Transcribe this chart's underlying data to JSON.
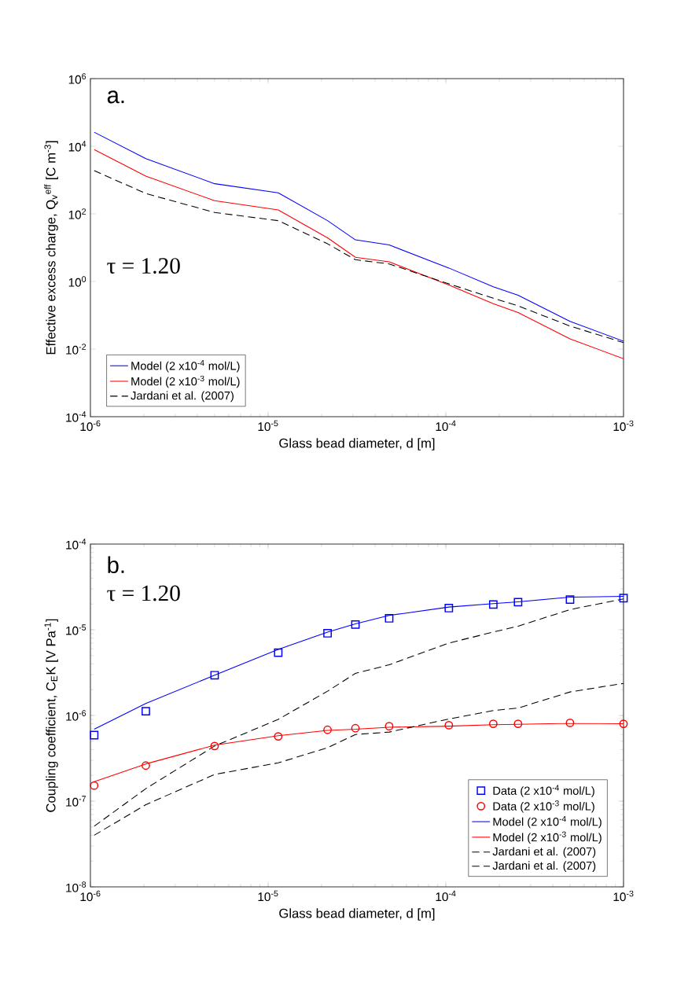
{
  "chart_data": [
    {
      "type": "line",
      "xlabel": "Glass bead diameter, d [m]",
      "ylabel": "Effective excess charge, Q$_{v}$$^{eff}$ [C m$^{-3}$]",
      "log": "xy",
      "legend": "bottom left",
      "grid": false,
      "xlim": [
        1e-06,
        0.001
      ],
      "ylim": [
        0.0001,
        1000000.0
      ],
      "xticks": [
        {
          "value": 1e-06,
          "label": "10$^{-6}$"
        },
        {
          "value": 1e-05,
          "label": "10$^{-5}$"
        },
        {
          "value": 0.0001,
          "label": "10$^{-4}$"
        },
        {
          "value": 0.001,
          "label": "10$^{-3}$"
        }
      ],
      "yticks": [
        {
          "value": 0.0001,
          "label": "10$^{-4}$"
        },
        {
          "value": 0.01,
          "label": "10$^{-2}$"
        },
        {
          "value": 1,
          "label": "10$^{0}$"
        },
        {
          "value": 100,
          "label": "10$^{2}$"
        },
        {
          "value": 10000.0,
          "label": "10$^{4}$"
        },
        {
          "value": 1000000.0,
          "label": "10$^{6}$"
        }
      ],
      "annotations": [
        "a.",
        "τ = 1.20"
      ],
      "x": [
        1.05e-06,
        2.05e-06,
        5e-06,
        1.14e-05,
        2.16e-05,
        3.1e-05,
        4.8e-05,
        0.000104,
        0.000185,
        0.000255,
        0.0005,
        0.001
      ],
      "series": [
        {
          "name": "Model (2 x10$^{-4}$ mol/L)",
          "color": "#0000ff",
          "line_style": "solid",
          "values": [
            26000,
            4300,
            780,
            420,
            63,
            17,
            12,
            2.5,
            0.7,
            0.39,
            0.066,
            0.017
          ]
        },
        {
          "name": "Model (2 x10$^{-3}$ mol/L)",
          "color": "#ff0000",
          "line_style": "solid",
          "values": [
            8000,
            1300,
            245,
            130,
            19.5,
            5.2,
            3.8,
            0.79,
            0.22,
            0.12,
            0.02,
            0.0052
          ]
        },
        {
          "name": "Jardani et al. (2007)",
          "color": "#000000",
          "line_style": "dashed",
          "values": [
            1900,
            400,
            110,
            63,
            13,
            4.4,
            3.3,
            0.85,
            0.32,
            0.19,
            0.048,
            0.0155
          ]
        }
      ]
    },
    {
      "type": "line",
      "xlabel": "Glass bead diameter, d [m]",
      "ylabel": "Coupling coefficient, C$_{E}$K [V Pa$^{-1}$]",
      "log": "xy",
      "legend": "bottom right",
      "grid": false,
      "xlim": [
        1e-06,
        0.001
      ],
      "ylim": [
        1e-08,
        0.0001
      ],
      "xticks": [
        {
          "value": 1e-06,
          "label": "10$^{-6}$"
        },
        {
          "value": 1e-05,
          "label": "10$^{-5}$"
        },
        {
          "value": 0.0001,
          "label": "10$^{-4}$"
        },
        {
          "value": 0.001,
          "label": "10$^{-3}$"
        }
      ],
      "yticks": [
        {
          "value": 1e-08,
          "label": "10$^{-8}$"
        },
        {
          "value": 1e-07,
          "label": "10$^{-7}$"
        },
        {
          "value": 1e-06,
          "label": "10$^{-6}$"
        },
        {
          "value": 1e-05,
          "label": "10$^{-5}$"
        },
        {
          "value": 0.0001,
          "label": "10$^{-4}$"
        }
      ],
      "annotations": [
        "b.",
        "τ = 1.20"
      ],
      "x": [
        1.05e-06,
        2.05e-06,
        5e-06,
        1.14e-05,
        2.16e-05,
        3.1e-05,
        4.8e-05,
        0.000104,
        0.000185,
        0.000255,
        0.0005,
        0.001
      ],
      "series": [
        {
          "name": "Data (2 x10$^{-4}$ mol/L)",
          "type": "scatter",
          "marker": "square",
          "color": "#0000ff",
          "values": [
            5.9e-07,
            1.12e-06,
            2.95e-06,
            5.4e-06,
            9.1e-06,
            1.15e-05,
            1.36e-05,
            1.79e-05,
            1.97e-05,
            2.1e-05,
            2.25e-05,
            2.34e-05
          ]
        },
        {
          "name": "Data (2 x10$^{-3}$ mol/L)",
          "type": "scatter",
          "marker": "circle",
          "color": "#ff0000",
          "values": [
            1.52e-07,
            2.6e-07,
            4.4e-07,
            5.7e-07,
            6.8e-07,
            7.1e-07,
            7.5e-07,
            7.7e-07,
            8e-07,
            8e-07,
            8.2e-07,
            8e-07
          ]
        },
        {
          "name": "Model (2 x10$^{-4}$ mol/L)",
          "type": "line",
          "line_style": "solid",
          "color": "#0000ff",
          "values": [
            6.9e-07,
            1.38e-06,
            2.95e-06,
            5.9e-06,
            9.4e-06,
            1.17e-05,
            1.47e-05,
            1.84e-05,
            2.02e-05,
            2.12e-05,
            2.4e-05,
            2.45e-05
          ]
        },
        {
          "name": "Model (2 x10$^{-3}$ mol/L)",
          "type": "line",
          "line_style": "solid",
          "color": "#ff0000",
          "values": [
            1.69e-07,
            2.72e-07,
            4.5e-07,
            5.8e-07,
            6.7e-07,
            6.9e-07,
            7.3e-07,
            7.5e-07,
            7.8e-07,
            7.9e-07,
            8.1e-07,
            8e-07
          ]
        },
        {
          "name": "Jardani et al. (2007)",
          "type": "line",
          "line_style": "dashed",
          "color": "#000000",
          "values": [
            5.1e-08,
            1.4e-07,
            4.4e-07,
            9e-07,
            1.92e-06,
            3.1e-06,
            3.9e-06,
            7e-06,
            9.4e-06,
            1.1e-05,
            1.72e-05,
            2.29e-05
          ]
        },
        {
          "name": "Jardani et al. (2007)",
          "type": "line",
          "line_style": "dashed",
          "color": "#000000",
          "values": [
            4e-08,
            9.1e-08,
            2.05e-07,
            2.8e-07,
            4.2e-07,
            6e-07,
            6.4e-07,
            9.1e-07,
            1.14e-06,
            1.22e-06,
            1.88e-06,
            2.37e-06
          ]
        }
      ]
    }
  ]
}
